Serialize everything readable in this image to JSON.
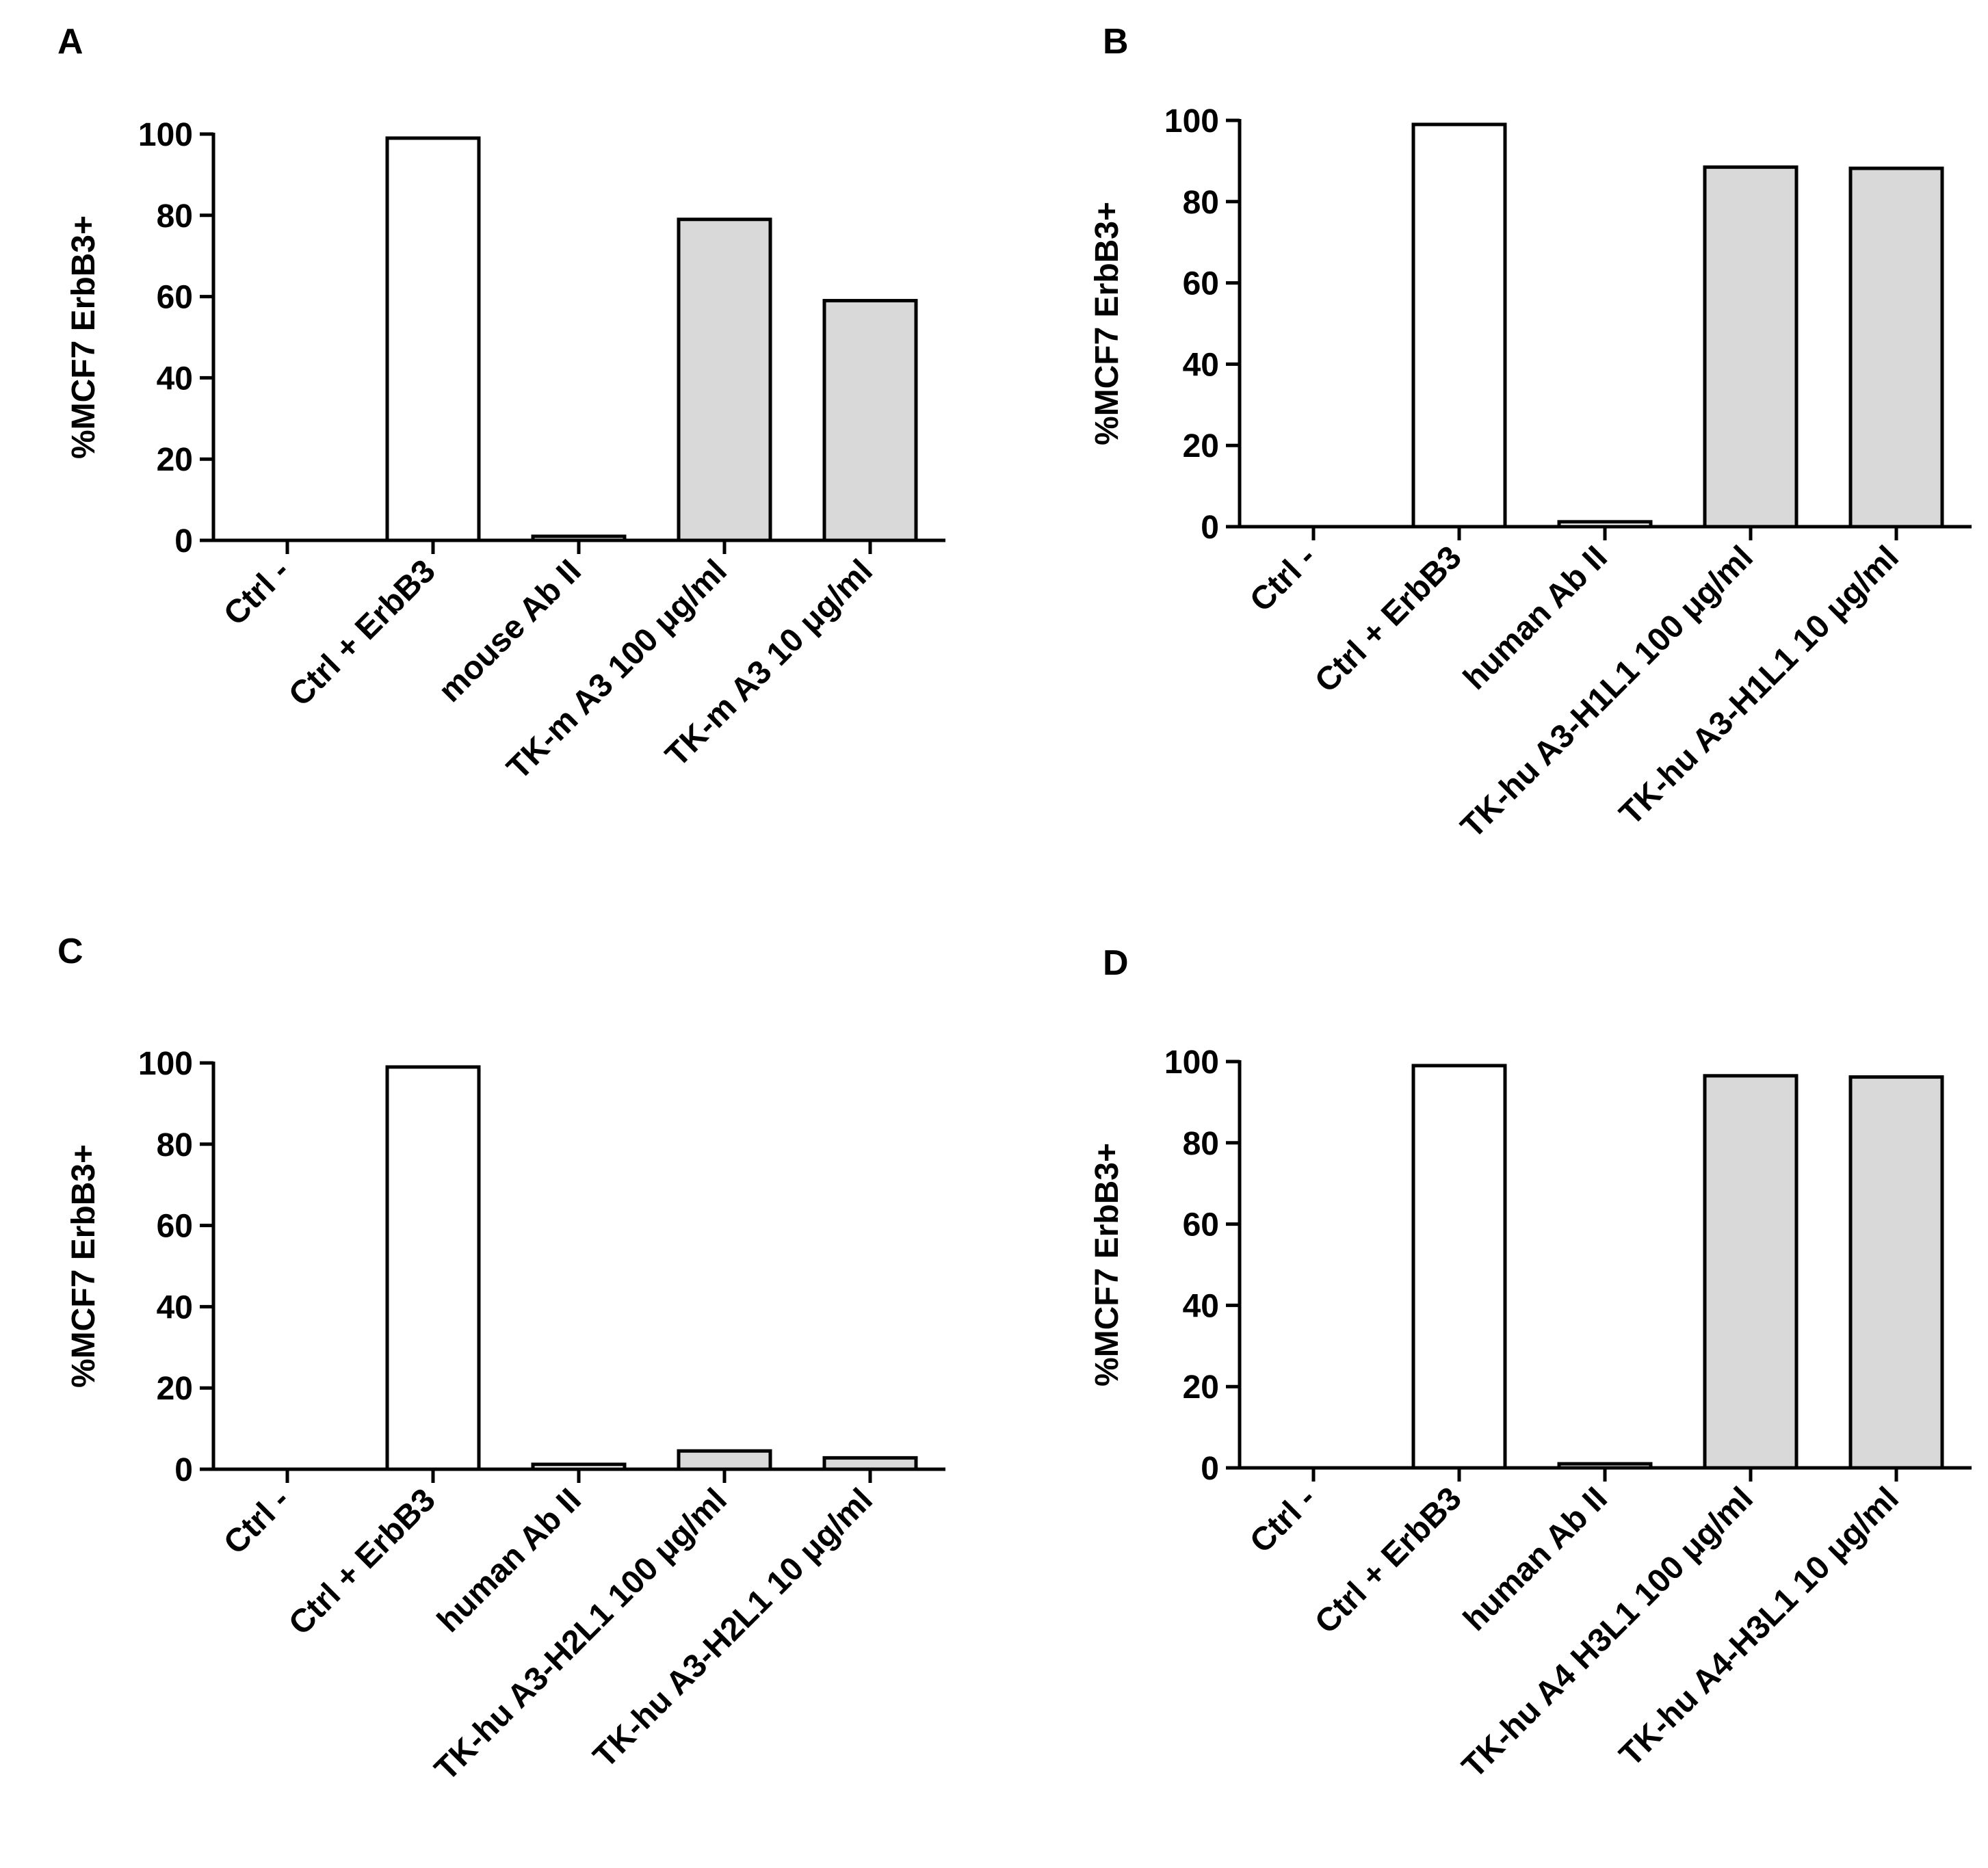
{
  "colors": {
    "control_bar": "#ffffff",
    "treatment_bar": "#d9d9d9",
    "axis": "#000000"
  },
  "chart_data": [
    {
      "type": "bar",
      "panel": "A",
      "ylabel": "%MCF7 ErbB3+",
      "ylim": [
        0,
        100
      ],
      "yticks": [
        "0",
        "20",
        "40",
        "60",
        "80",
        "100"
      ],
      "categories": [
        "Ctrl -",
        "Ctrl + ErbB3",
        "mouse Ab II",
        "TK-m A3 100 μg/ml",
        "TK-m A3 10 μg/ml"
      ],
      "values": [
        0,
        99,
        1,
        79,
        59
      ],
      "bar_fill": [
        "control",
        "control",
        "control",
        "treatment",
        "treatment"
      ]
    },
    {
      "type": "bar",
      "panel": "B",
      "ylabel": "%MCF7 ErbB3+",
      "ylim": [
        0,
        100
      ],
      "yticks": [
        "0",
        "20",
        "40",
        "60",
        "80",
        "100"
      ],
      "categories": [
        "Ctrl -",
        "Ctrl + ErbB3",
        "human Ab II",
        "TK-hu A3-H1L1 100 μg/ml",
        "TK-hu A3-H1L1 10 μg/ml"
      ],
      "values": [
        0,
        99,
        1.2,
        88.5,
        88.2
      ],
      "bar_fill": [
        "control",
        "control",
        "control",
        "treatment",
        "treatment"
      ]
    },
    {
      "type": "bar",
      "panel": "C",
      "ylabel": "%MCF7 ErbB3+",
      "ylim": [
        0,
        100
      ],
      "yticks": [
        "0",
        "20",
        "40",
        "60",
        "80",
        "100"
      ],
      "categories": [
        "Ctrl -",
        "Ctrl + ErbB3",
        "human Ab II",
        "TK-hu A3-H2L1 100 μg/ml",
        "TK-hu A3-H2L1 10 μg/ml"
      ],
      "values": [
        0,
        99,
        1.2,
        4.5,
        2.8
      ],
      "bar_fill": [
        "control",
        "control",
        "control",
        "treatment",
        "treatment"
      ]
    },
    {
      "type": "bar",
      "panel": "D",
      "ylabel": "%MCF7 ErbB3+",
      "ylim": [
        0,
        100
      ],
      "yticks": [
        "0",
        "20",
        "40",
        "60",
        "80",
        "100"
      ],
      "categories": [
        "Ctrl -",
        "Ctrl + ErbB3",
        "human Ab II",
        "TK-hu A4 H3L1 100 μg/ml",
        "TK-hu A4-H3L1 10 μg/ml"
      ],
      "values": [
        0,
        99,
        1,
        96.5,
        96.2
      ],
      "bar_fill": [
        "control",
        "control",
        "control",
        "treatment",
        "treatment"
      ]
    }
  ]
}
